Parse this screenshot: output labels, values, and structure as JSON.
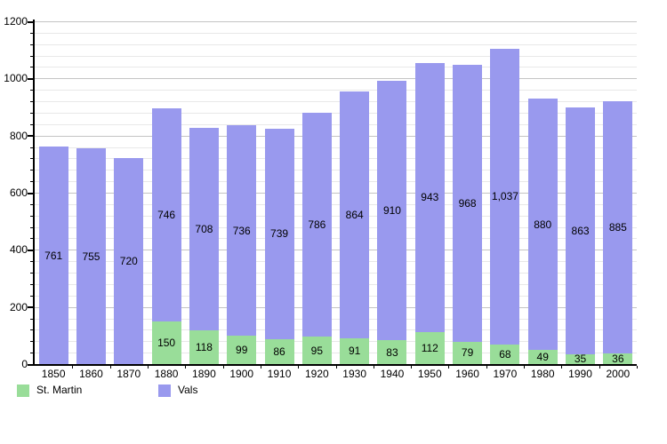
{
  "chart_data": {
    "type": "bar",
    "stacked": true,
    "title": "",
    "xlabel": "",
    "ylabel": "",
    "categories": [
      "1850",
      "1860",
      "1870",
      "1880",
      "1890",
      "1900",
      "1910",
      "1920",
      "1930",
      "1940",
      "1950",
      "1960",
      "1970",
      "1980",
      "1990",
      "2000"
    ],
    "series": [
      {
        "name": "St. Martin",
        "color": "#99DD99",
        "values": [
          null,
          null,
          null,
          150,
          118,
          99,
          86,
          95,
          91,
          83,
          112,
          79,
          68,
          49,
          35,
          36
        ],
        "labels": [
          "",
          "",
          "",
          "150",
          "118",
          "99",
          "86",
          "95",
          "91",
          "83",
          "112",
          "79",
          "68",
          "49",
          "35",
          "36"
        ]
      },
      {
        "name": "Vals",
        "color": "#9999EE",
        "values": [
          761,
          755,
          720,
          746,
          708,
          736,
          739,
          786,
          864,
          910,
          943,
          968,
          1037,
          880,
          863,
          885
        ],
        "labels": [
          "761",
          "755",
          "720",
          "746",
          "708",
          "736",
          "739",
          "786",
          "864",
          "910",
          "943",
          "968",
          "1,037",
          "880",
          "863",
          "885"
        ]
      }
    ],
    "ylim": [
      0,
      1200
    ],
    "y_ticks": [
      0,
      200,
      400,
      600,
      800,
      1000,
      1200
    ],
    "y_minor_step": 40,
    "grid": true,
    "legend_position": "bottom-left"
  },
  "legend": {
    "items": [
      {
        "label": "St. Martin",
        "color": "#99DD99"
      },
      {
        "label": "Vals",
        "color": "#9999EE"
      }
    ]
  },
  "colors": {
    "background": "#ffffff",
    "axis": "#000000",
    "grid_major": "#c4c4c4",
    "grid_minor": "#e8e8e8",
    "text": "#000000"
  }
}
